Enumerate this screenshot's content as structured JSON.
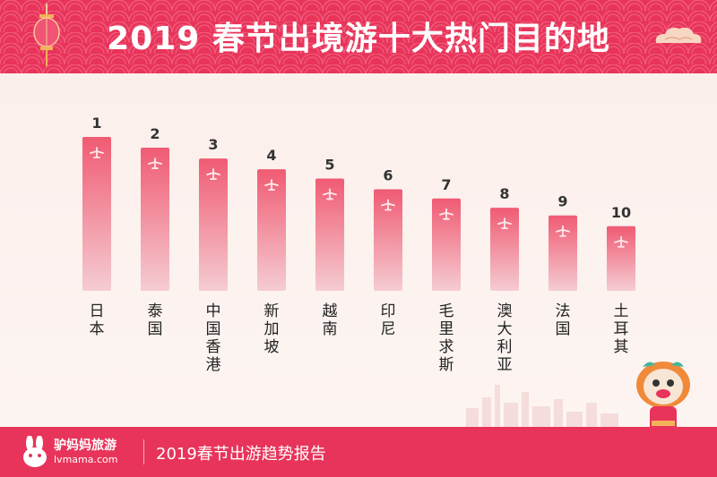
{
  "header": {
    "title": "2019 春节出境游十大热门目的地"
  },
  "footer": {
    "brand_name": "驴妈妈旅游",
    "brand_url": "lvmama.com",
    "report_title": "2019春节出游趋势报告"
  },
  "colors": {
    "header_bg": "#e8345a",
    "bar_top": "#f05b73",
    "bar_bottom": "#f2c9cf",
    "rank_text": "#333333",
    "label_text": "#222222"
  },
  "icons": [
    "lantern-icon",
    "cloud-icon",
    "airplane-icon",
    "rabbit-logo-icon",
    "lion-mascot-icon",
    "city-skyline-icon"
  ],
  "chart_data": {
    "type": "bar",
    "title": "2019 春节出境游十大热门目的地",
    "categories": [
      "日本",
      "泰国",
      "中国香港",
      "新加坡",
      "越南",
      "印尼",
      "毛里求斯",
      "澳大利亚",
      "法国",
      "土耳其"
    ],
    "ranks": [
      "1",
      "2",
      "3",
      "4",
      "5",
      "6",
      "7",
      "8",
      "9",
      "10"
    ],
    "values": [
      10,
      9.3,
      8.6,
      7.9,
      7.3,
      6.6,
      6.0,
      5.4,
      4.9,
      4.2
    ],
    "ylim": [
      0,
      10
    ],
    "xlabel": "",
    "ylabel": "",
    "grid": false,
    "legend": "none"
  }
}
